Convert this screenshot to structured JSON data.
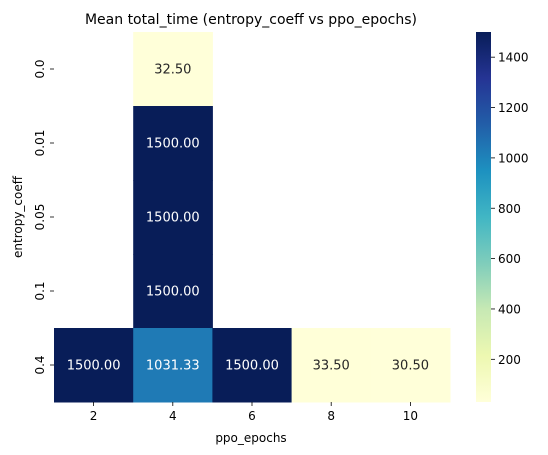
{
  "chart_data": {
    "type": "heatmap",
    "title": "Mean total_time (entropy_coeff vs ppo_epochs)",
    "xlabel": "ppo_epochs",
    "ylabel": "entropy_coeff",
    "x_categories": [
      "2",
      "4",
      "6",
      "8",
      "10"
    ],
    "y_categories": [
      "0.0",
      "0.01",
      "0.05",
      "0.1",
      "0.4"
    ],
    "cells": [
      {
        "x": "4",
        "y": "0.0",
        "value": 32.5,
        "label": "32.50"
      },
      {
        "x": "4",
        "y": "0.01",
        "value": 1500.0,
        "label": "1500.00"
      },
      {
        "x": "4",
        "y": "0.05",
        "value": 1500.0,
        "label": "1500.00"
      },
      {
        "x": "4",
        "y": "0.1",
        "value": 1500.0,
        "label": "1500.00"
      },
      {
        "x": "2",
        "y": "0.4",
        "value": 1500.0,
        "label": "1500.00"
      },
      {
        "x": "4",
        "y": "0.4",
        "value": 1031.33,
        "label": "1031.33"
      },
      {
        "x": "6",
        "y": "0.4",
        "value": 1500.0,
        "label": "1500.00"
      },
      {
        "x": "8",
        "y": "0.4",
        "value": 33.5,
        "label": "33.50"
      },
      {
        "x": "10",
        "y": "0.4",
        "value": 30.5,
        "label": "30.50"
      }
    ],
    "colorbar": {
      "colormap": "YlGnBu",
      "range": [
        30.5,
        1500.0
      ],
      "ticks": [
        200,
        400,
        600,
        800,
        1000,
        1200,
        1400
      ]
    }
  }
}
